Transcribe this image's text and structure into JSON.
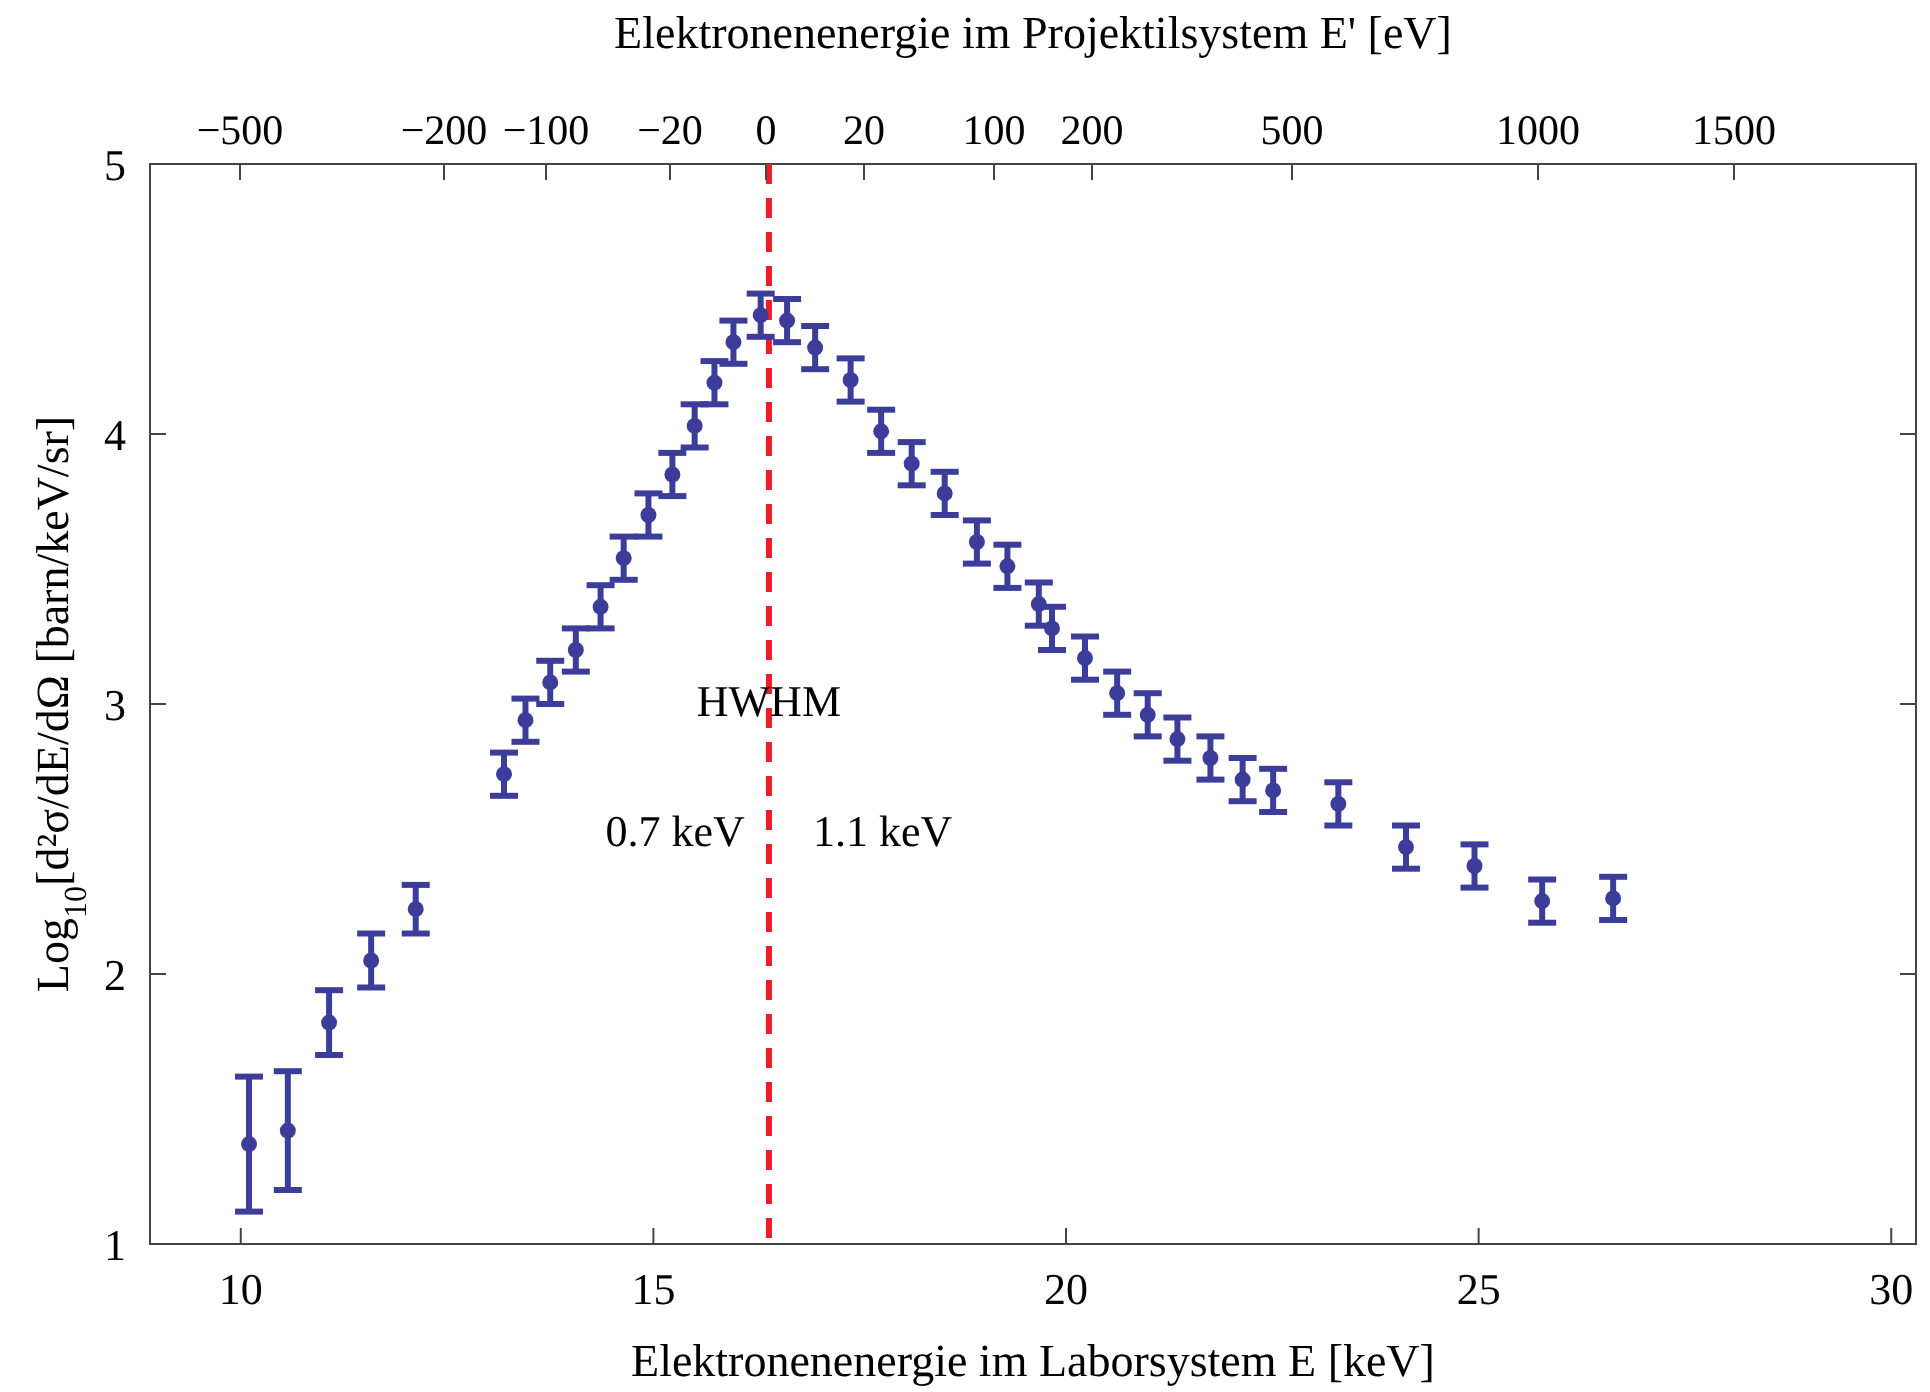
{
  "chart_data": {
    "type": "scatter",
    "xlabel": "Elektronenenergie im Laborsystem E [keV]",
    "x2label": "Elektronenenergie im Projektilsystem E' [eV]",
    "ylabel": "Log$_{10}$[d²σ/dE/dΩ [barn/keV/sr]",
    "xlim": [
      8.9,
      30.3
    ],
    "xticks": [
      10,
      15,
      20,
      25,
      30
    ],
    "ylim": [
      1,
      5
    ],
    "yticks": [
      1,
      2,
      3,
      4,
      5
    ],
    "x": [
      10.1,
      10.57,
      11.07,
      11.58,
      12.12,
      13.19,
      13.45,
      13.75,
      14.06,
      14.36,
      14.64,
      14.94,
      15.23,
      15.5,
      15.74,
      15.97,
      16.3,
      16.62,
      16.96,
      17.39,
      17.76,
      18.13,
      18.53,
      18.92,
      19.29,
      19.67,
      19.83,
      20.23,
      20.62,
      20.99,
      21.35,
      21.75,
      22.14,
      22.51,
      23.3,
      24.12,
      24.95,
      25.77,
      26.63
    ],
    "series": [
      {
        "color": "#3c3c9a",
        "values": [
          1.37,
          1.42,
          1.82,
          2.05,
          2.24,
          2.74,
          2.94,
          3.08,
          3.2,
          3.36,
          3.54,
          3.7,
          3.85,
          4.03,
          4.19,
          4.34,
          4.44,
          4.42,
          4.32,
          4.2,
          4.01,
          3.89,
          3.78,
          3.6,
          3.51,
          3.37,
          3.28,
          3.17,
          3.04,
          2.96,
          2.87,
          2.8,
          2.72,
          2.68,
          2.63,
          2.47,
          2.4,
          2.27,
          2.28
        ],
        "errors": [
          0.25,
          0.22,
          0.12,
          0.1,
          0.09,
          0.08,
          0.08,
          0.08,
          0.08,
          0.08,
          0.08,
          0.08,
          0.08,
          0.08,
          0.08,
          0.08,
          0.08,
          0.08,
          0.08,
          0.08,
          0.08,
          0.08,
          0.08,
          0.08,
          0.08,
          0.08,
          0.08,
          0.08,
          0.08,
          0.08,
          0.08,
          0.08,
          0.08,
          0.08,
          0.08,
          0.08,
          0.08,
          0.08,
          0.08
        ]
      }
    ],
    "marker": "circle",
    "ref_lines": [
      {
        "axis": "x",
        "value": 16.4,
        "color": "#ee1c24",
        "line_style": "dashed"
      }
    ],
    "annotations": [
      "HWHM",
      "0.7 keV",
      "1.1 keV",
      "−500",
      "−200",
      "−100",
      "−20",
      "0",
      "20",
      "100",
      "200",
      "500",
      "1000",
      "1500"
    ]
  }
}
